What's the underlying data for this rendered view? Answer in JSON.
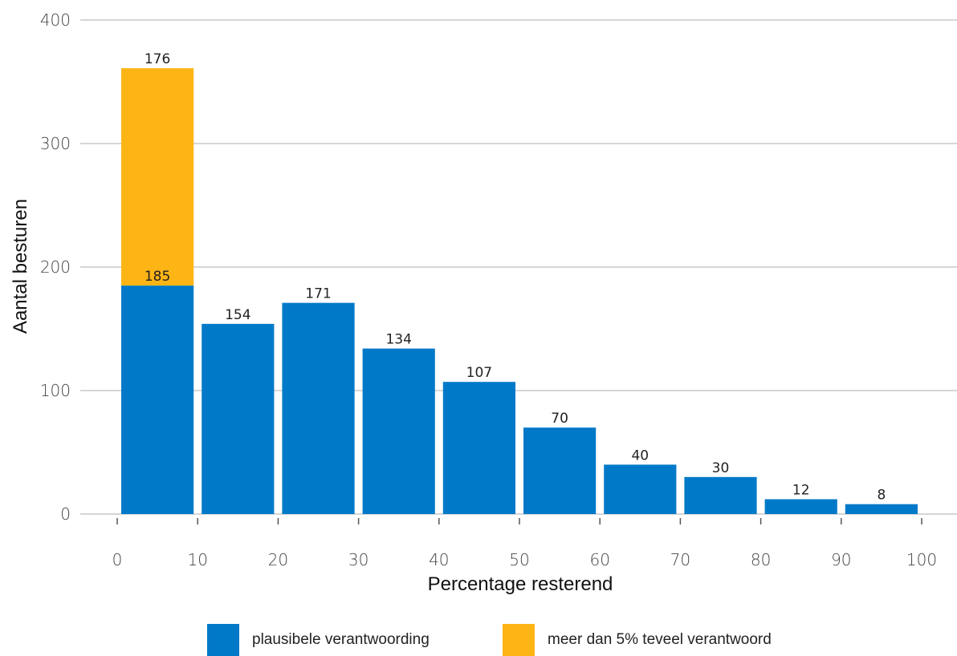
{
  "chart_data": {
    "type": "bar",
    "stacked": true,
    "title": "",
    "xlabel": "Percentage resterend",
    "ylabel": "Aantal besturen",
    "x_bins": [
      [
        0,
        10
      ],
      [
        10,
        20
      ],
      [
        20,
        30
      ],
      [
        30,
        40
      ],
      [
        40,
        50
      ],
      [
        50,
        60
      ],
      [
        60,
        70
      ],
      [
        70,
        80
      ],
      [
        80,
        90
      ],
      [
        90,
        100
      ]
    ],
    "x_ticks": [
      "0",
      "10",
      "20",
      "30",
      "40",
      "50",
      "60",
      "70",
      "80",
      "90",
      "100"
    ],
    "y_ticks": [
      "0",
      "100",
      "200",
      "300",
      "400"
    ],
    "ylim": [
      0,
      400
    ],
    "xlim": [
      0,
      100
    ],
    "grid": "horizontal",
    "legend_position": "bottom",
    "series": [
      {
        "name": "plausibele verantwoording",
        "color": "#0079C8",
        "values": [
          185,
          154,
          171,
          134,
          107,
          70,
          40,
          30,
          12,
          8
        ]
      },
      {
        "name": "meer dan 5% teveel verantwoord",
        "color": "#FDB515",
        "values": [
          176,
          0,
          0,
          0,
          0,
          0,
          0,
          0,
          0,
          0
        ]
      }
    ],
    "data_labels": [
      [
        "185",
        "154",
        "171",
        "134",
        "107",
        "70",
        "40",
        "30",
        "12",
        "8"
      ],
      [
        "176",
        "",
        "",
        "",
        "",
        "",
        "",
        "",
        "",
        ""
      ]
    ]
  }
}
